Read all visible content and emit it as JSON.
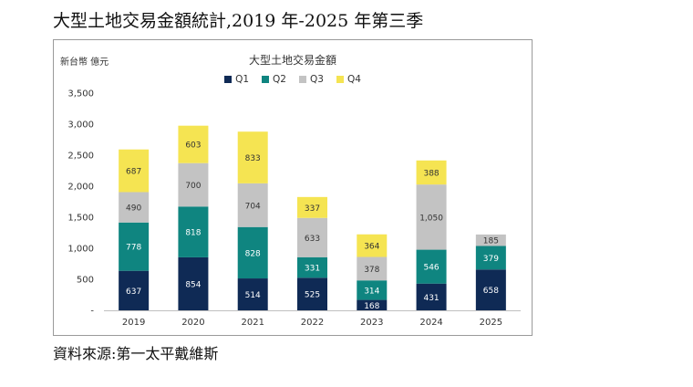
{
  "heading": "大型土地交易金額統計,2019 年-2025 年第三季",
  "source": "資料來源:第一太平戴維斯",
  "chart_data": {
    "type": "bar",
    "stacked": true,
    "title": "大型土地交易金額",
    "unit_label": "新台幣 億元",
    "categories": [
      "2019",
      "2020",
      "2021",
      "2022",
      "2023",
      "2024",
      "2025"
    ],
    "series": [
      {
        "name": "Q1",
        "color": "#0f2a55",
        "values": [
          637,
          854,
          514,
          525,
          168,
          431,
          658
        ]
      },
      {
        "name": "Q2",
        "color": "#0f8580",
        "values": [
          778,
          818,
          828,
          331,
          314,
          546,
          379
        ]
      },
      {
        "name": "Q3",
        "color": "#c3c3c3",
        "values": [
          490,
          700,
          704,
          633,
          378,
          1050,
          185
        ]
      },
      {
        "name": "Q4",
        "color": "#f5e452",
        "values": [
          687,
          603,
          833,
          337,
          364,
          388,
          null
        ]
      }
    ],
    "ylim": [
      0,
      3500
    ],
    "yticks": [
      "-",
      "500",
      "1,000",
      "1,500",
      "2,000",
      "2,500",
      "3,000",
      "3,500"
    ],
    "ytick_values": [
      0,
      500,
      1000,
      1500,
      2000,
      2500,
      3000,
      3500
    ],
    "grid": false,
    "legend": "top"
  }
}
